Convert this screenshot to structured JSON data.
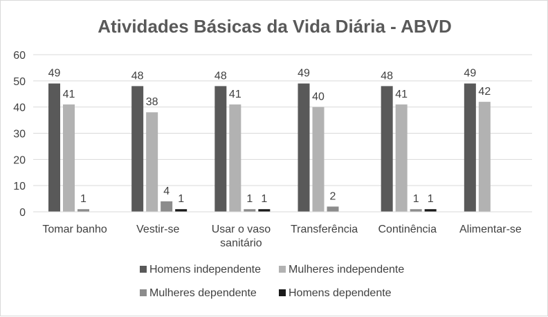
{
  "chart_data": {
    "type": "bar",
    "title": "Atividades Básicas da Vida Diária - ABVD",
    "categories": [
      [
        "Tomar banho"
      ],
      [
        "Vestir-se"
      ],
      [
        "Usar o vaso",
        "sanitário"
      ],
      [
        "Transferência"
      ],
      [
        "Continência"
      ],
      [
        "Alimentar-se"
      ]
    ],
    "series": [
      {
        "name": "Homens independente",
        "color": "#595959",
        "values": [
          49,
          48,
          48,
          49,
          48,
          49
        ]
      },
      {
        "name": "Mulheres independente",
        "color": "#b2b2b2",
        "values": [
          41,
          38,
          41,
          40,
          41,
          42
        ]
      },
      {
        "name": "Mulheres dependente",
        "color": "#8c8c8c",
        "values": [
          1,
          4,
          1,
          2,
          1,
          null
        ]
      },
      {
        "name": "Homens dependente",
        "color": "#1a1a1a",
        "values": [
          null,
          1,
          1,
          null,
          1,
          null
        ]
      }
    ],
    "yticks": [
      0,
      10,
      20,
      30,
      40,
      50,
      60
    ],
    "ylim": [
      0,
      60
    ],
    "xlabel": "",
    "ylabel": "",
    "grid": true,
    "legend_position": "bottom"
  }
}
